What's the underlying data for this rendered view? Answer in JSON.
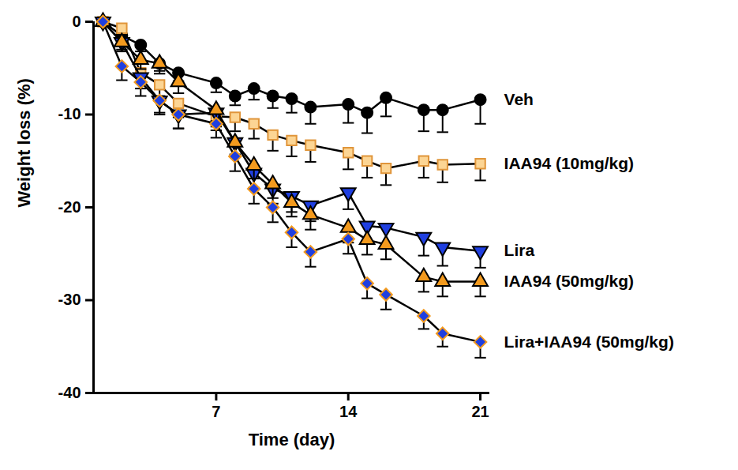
{
  "chart_data": {
    "type": "line",
    "x_label": "Time (day)",
    "y_label": "Weight loss (%)",
    "x": [
      1,
      2,
      3,
      4,
      5,
      7,
      8,
      9,
      10,
      11,
      12,
      14,
      15,
      16,
      18,
      19,
      21
    ],
    "xlim": [
      0.5,
      21.5
    ],
    "xticks": [
      7,
      14,
      21
    ],
    "ylim": [
      -40,
      0
    ],
    "yticks": [
      0,
      -10,
      -20,
      -30,
      -40
    ],
    "series": [
      {
        "name": "Veh",
        "color": "#000000",
        "marker": "circle",
        "values": [
          0,
          -1.5,
          -2.5,
          -4.5,
          -5.5,
          -6.6,
          -8,
          -7.2,
          -8,
          -8.3,
          -9.2,
          -8.9,
          -9.8,
          -8.2,
          -9.5,
          -9.5,
          -8.4
        ],
        "errors": [
          0,
          0.5,
          0.7,
          0.8,
          0.9,
          1,
          1,
          1.2,
          1.3,
          1.5,
          1.8,
          2,
          2.2,
          2,
          2.3,
          2.4,
          2.6
        ]
      },
      {
        "name": "IAA94 (10mg/kg)",
        "color": "#fcd594",
        "marker": "square",
        "values": [
          0,
          -0.7,
          -5.5,
          -6.8,
          -8.8,
          -10.2,
          -10.3,
          -11,
          -12.2,
          -12.8,
          -13.3,
          -14.1,
          -15,
          -15.8,
          -15,
          -15.4,
          -15.3
        ],
        "errors": [
          0,
          0.6,
          1,
          1.2,
          1.5,
          1.5,
          1.5,
          1.6,
          1.7,
          1.7,
          1.8,
          1.8,
          1.8,
          1.8,
          1.8,
          1.9,
          1.8
        ]
      },
      {
        "name": "Lira",
        "color": "#1f3fe0",
        "marker": "triangle-down",
        "values": [
          0,
          -2.2,
          -6,
          -8.5,
          -10,
          -9.8,
          -13,
          -16.3,
          -18,
          -18.8,
          -19.8,
          -18.4,
          -22,
          -22.2,
          -23.2,
          -24.3,
          -24.7
        ],
        "errors": [
          0,
          1,
          1.2,
          1.3,
          1.5,
          1.5,
          1.5,
          1.6,
          1.6,
          1.7,
          1.7,
          1.8,
          1.9,
          2,
          2,
          2,
          1.8
        ]
      },
      {
        "name": "IAA94 (50mg/kg)",
        "color": "#f39a1e",
        "marker": "triangle",
        "values": [
          0,
          -2.2,
          -4.1,
          -4.5,
          -6.5,
          -9.5,
          -13,
          -15.5,
          -17.5,
          -19.5,
          -20.8,
          -22.2,
          -23.5,
          -24,
          -27.5,
          -28,
          -28
        ],
        "errors": [
          0,
          0.8,
          1,
          1.1,
          1.2,
          1.2,
          1.3,
          1.4,
          1.5,
          1.5,
          1.6,
          1.6,
          1.6,
          1.6,
          1.6,
          1.6,
          1.6
        ]
      },
      {
        "name": "Lira+IAA94 (50mg/kg)",
        "color": "#1f3fe0",
        "marker": "diamond",
        "values": [
          0,
          -4.8,
          -6.5,
          -8.5,
          -10,
          -11,
          -14.5,
          -18,
          -20,
          -22.7,
          -24.8,
          -23.4,
          -28.2,
          -29.4,
          -31.7,
          -33.6,
          -34.5
        ],
        "errors": [
          0,
          1.5,
          1.5,
          1.5,
          1.5,
          1.5,
          1.6,
          1.6,
          1.6,
          1.6,
          1.6,
          1.6,
          1.6,
          1.6,
          1.4,
          1.4,
          1.7
        ]
      }
    ]
  }
}
